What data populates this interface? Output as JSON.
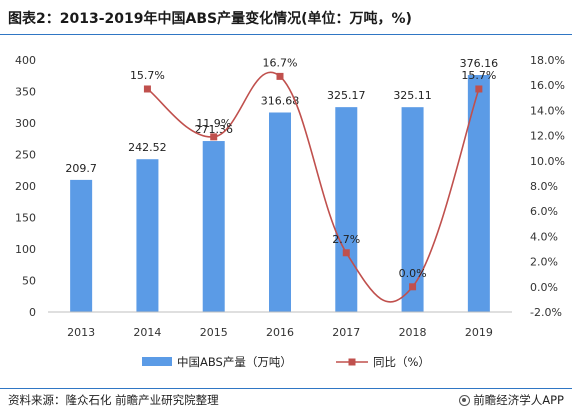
{
  "header": {
    "title": "图表2：2013-2019年中国ABS产量变化情况(单位：万吨，%)"
  },
  "footer": {
    "source": "资料来源：隆众石化 前瞻产业研究院整理",
    "brand": "前瞻经济学人APP"
  },
  "colors": {
    "bar": "#5b9be6",
    "line": "#c0504d",
    "axis": "#333333",
    "accent": "#2f76c4"
  },
  "chart_data": {
    "type": "bar",
    "categories": [
      "2013",
      "2014",
      "2015",
      "2016",
      "2017",
      "2018",
      "2019"
    ],
    "series": [
      {
        "name": "中国ABS产量（万吨）",
        "type": "bar",
        "axis": "left",
        "values": [
          209.7,
          242.52,
          271.36,
          316.68,
          325.17,
          325.11,
          376.16
        ],
        "labels": [
          "209.7",
          "242.52",
          "271.36",
          "316.68",
          "325.17",
          "325.11",
          "376.16"
        ]
      },
      {
        "name": "同比（%）",
        "type": "line",
        "axis": "right",
        "values": [
          null,
          15.7,
          11.9,
          16.7,
          2.7,
          0.0,
          15.7
        ],
        "labels": [
          "",
          "15.7%",
          "11.9%",
          "16.7%",
          "2.7%",
          "0.0%",
          "15.7%"
        ]
      }
    ],
    "left_axis": {
      "ylim": [
        0,
        400
      ],
      "ticks": [
        "0",
        "50",
        "100",
        "150",
        "200",
        "250",
        "300",
        "350",
        "400"
      ]
    },
    "right_axis": {
      "ylim": [
        -2,
        18
      ],
      "ticks": [
        "-2.0%",
        "0.0%",
        "2.0%",
        "4.0%",
        "6.0%",
        "8.0%",
        "10.0%",
        "12.0%",
        "14.0%",
        "16.0%",
        "18.0%"
      ]
    },
    "legend_position": "bottom",
    "grid": false
  }
}
